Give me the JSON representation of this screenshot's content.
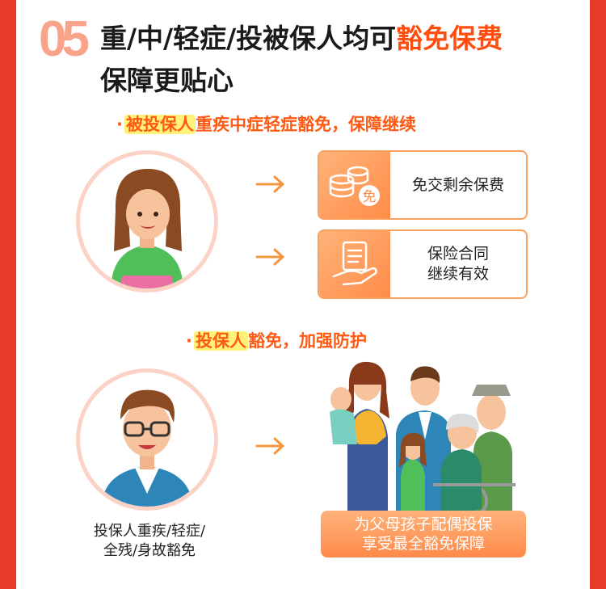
{
  "header": {
    "number": "05",
    "title_line1_prefix": "重/中/轻症/投被保人均可",
    "title_line1_highlight": "豁免保费",
    "title_line2": "保障更贴心"
  },
  "section1": {
    "bullet": "·",
    "highlight": "被投保人",
    "rest": "重疾中症轻症豁免，保障继续",
    "cards": [
      {
        "icon": "coins-icon",
        "badge": "免",
        "lines": [
          "免交剩余保费"
        ]
      },
      {
        "icon": "contract-hand-icon",
        "lines": [
          "保险合同",
          "继续有效"
        ]
      }
    ]
  },
  "section2": {
    "bullet": "·",
    "highlight": "投保人",
    "rest": "豁免，加强防护",
    "caption_lines": [
      "投保人重疾/轻症/",
      "全残/身故豁免"
    ],
    "banner_lines": [
      "为父母孩子配偶投保",
      "享受最全豁免保障"
    ]
  },
  "colors": {
    "frame": "#e83a2a",
    "accent": "#ff4d10",
    "highlight_bg": "#fff17a",
    "card_border": "#f9a05e",
    "circle_border": "#fbd2c5"
  }
}
